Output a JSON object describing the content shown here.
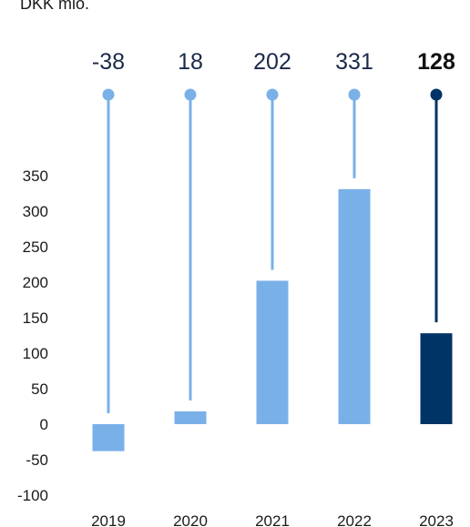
{
  "unit_label": "DKK mio.",
  "chart_data": {
    "type": "bar",
    "categories": [
      "2019",
      "2020",
      "2021",
      "2022",
      "2023"
    ],
    "values": [
      -38,
      18,
      202,
      331,
      128
    ],
    "value_labels": [
      "-38",
      "18",
      "202",
      "331",
      "128"
    ],
    "highlight_index": 4,
    "ylabel": "DKK mio.",
    "ylim": [
      -100,
      350
    ],
    "yticks": [
      350,
      300,
      250,
      200,
      150,
      100,
      50,
      0,
      -50,
      -100
    ],
    "grid": false,
    "legend": "none",
    "colors": {
      "bar": "#7ab0e8",
      "highlight": "#003366",
      "text": "#1a1a1a"
    }
  }
}
